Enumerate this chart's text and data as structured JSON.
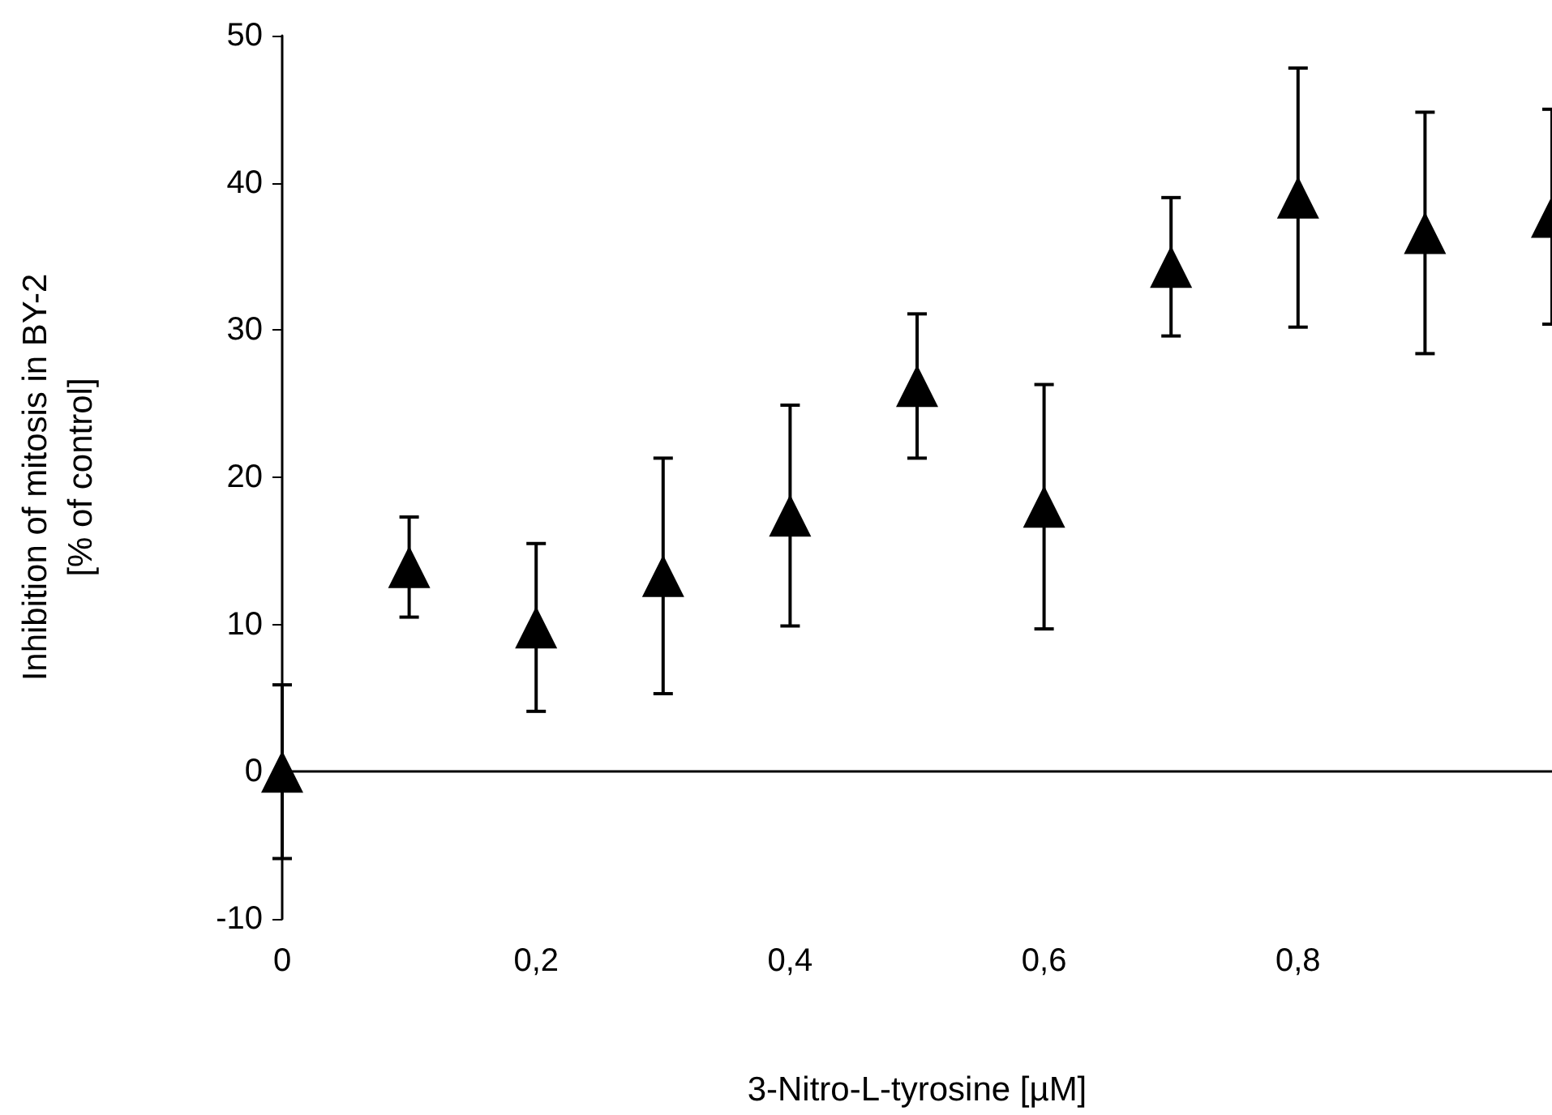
{
  "chart_data": {
    "type": "scatter",
    "xlabel": "3-Nitro-L-tyrosine [µM]",
    "ylabel": "Inhibition of mitosis in BY-2\n[% of control]",
    "x": [
      0,
      0.1,
      0.2,
      0.3,
      0.4,
      0.5,
      0.6,
      0.7,
      0.8,
      0.9,
      1.0
    ],
    "series": [
      {
        "color": "#000000",
        "values": [
          0,
          13.9,
          9.8,
          13.3,
          17.4,
          26.2,
          18.0,
          34.3,
          39.0,
          36.6,
          37.7
        ],
        "errors": [
          5.9,
          3.4,
          5.7,
          8.0,
          7.5,
          4.9,
          8.3,
          4.7,
          8.8,
          8.2,
          7.3
        ]
      }
    ],
    "marker": "triangle",
    "xlim": [
      0,
      1
    ],
    "xticks": [
      0,
      {
        "value": 0.2,
        "label": "0,2"
      },
      {
        "value": 0.4,
        "label": "0,4"
      },
      {
        "value": 0.6,
        "label": "0,6"
      },
      {
        "value": 0.8,
        "label": "0,8"
      }
    ],
    "ylim": [
      -10,
      50
    ],
    "yticks": [
      -10,
      0,
      10,
      20,
      30,
      40,
      50
    ]
  }
}
